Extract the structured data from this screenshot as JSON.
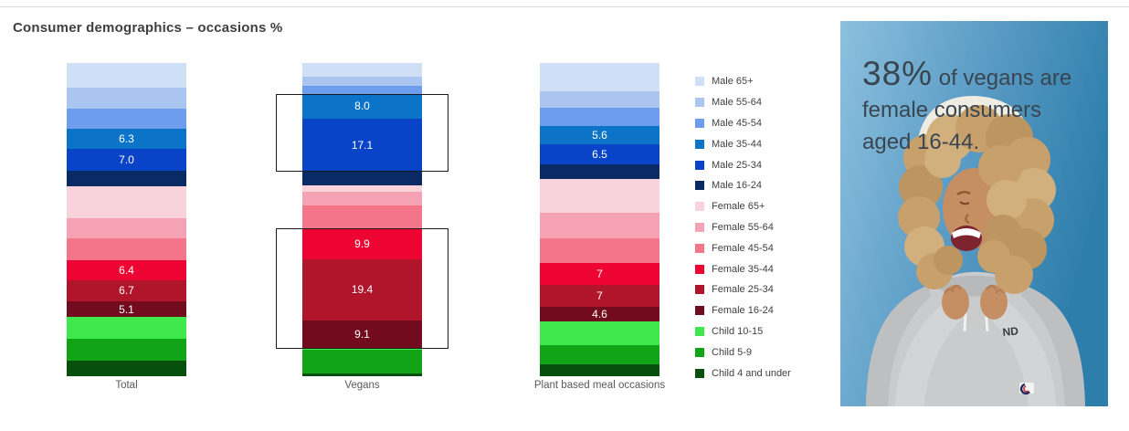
{
  "title": "Consumer demographics – occasions %",
  "chart_data": {
    "type": "bar",
    "stacked": true,
    "unit": "%",
    "grid": false,
    "legend_position": "right",
    "categories": [
      "Total",
      "Vegans",
      "Plant based meal occasions"
    ],
    "segments": [
      {
        "label": "Male 65+",
        "color": "#CEDFF6",
        "values": [
          7.9,
          4.5,
          9.0
        ],
        "labels": [
          null,
          null,
          null
        ]
      },
      {
        "label": "Male 55-64",
        "color": "#A9C5F0",
        "values": [
          6.7,
          2.9,
          5.3
        ],
        "labels": [
          null,
          null,
          null
        ]
      },
      {
        "label": "Male 45-54",
        "color": "#6D9EEE",
        "values": [
          6.5,
          2.4,
          5.9
        ],
        "labels": [
          null,
          null,
          null
        ]
      },
      {
        "label": "Male 35-44",
        "color": "#0C74C8",
        "values": [
          6.3,
          8.0,
          5.6
        ],
        "labels": [
          "6.3",
          "8.0",
          "5.6"
        ]
      },
      {
        "label": "Male 25-34",
        "color": "#0944C8",
        "values": [
          7.0,
          17.1,
          6.5
        ],
        "labels": [
          "7.0",
          "17.1",
          "6.5"
        ]
      },
      {
        "label": "Male 16-24",
        "color": "#0A2A66",
        "values": [
          4.9,
          4.3,
          4.7
        ],
        "labels": [
          null,
          null,
          null
        ]
      },
      {
        "label": "Female 65+",
        "color": "#F8D3DC",
        "values": [
          10.2,
          1.9,
          10.8
        ],
        "labels": [
          null,
          null,
          null
        ]
      },
      {
        "label": "Female 55-64",
        "color": "#F5A2B4",
        "values": [
          6.5,
          4.6,
          8.0
        ],
        "labels": [
          null,
          null,
          null
        ]
      },
      {
        "label": "Female 45-54",
        "color": "#F4758A",
        "values": [
          7.0,
          7.3,
          8.0
        ],
        "labels": [
          null,
          null,
          null
        ]
      },
      {
        "label": "Female 35-44",
        "color": "#EE0433",
        "values": [
          6.4,
          9.9,
          7.0
        ],
        "labels": [
          "6.4",
          "9.9",
          "7"
        ]
      },
      {
        "label": "Female 25-34",
        "color": "#B0152C",
        "values": [
          6.7,
          19.4,
          7.0
        ],
        "labels": [
          "6.7",
          "19.4",
          "7"
        ]
      },
      {
        "label": "Female 16-24",
        "color": "#730B1E",
        "values": [
          5.1,
          9.1,
          4.6
        ],
        "labels": [
          "5.1",
          "9.1",
          "4.6"
        ]
      },
      {
        "label": "Child 10-15",
        "color": "#3FE84D",
        "values": [
          6.9,
          0.5,
          7.5
        ],
        "labels": [
          null,
          null,
          null
        ]
      },
      {
        "label": "Child 5-9",
        "color": "#12A417",
        "values": [
          7.0,
          7.4,
          6.3
        ],
        "labels": [
          null,
          null,
          null
        ]
      },
      {
        "label": "Child 4 and under",
        "color": "#074F0C",
        "values": [
          4.9,
          0.9,
          3.6
        ],
        "labels": [
          null,
          null,
          null
        ]
      }
    ],
    "highlights": [
      {
        "category_index": 1,
        "segment_start": 3,
        "segment_end": 4
      },
      {
        "category_index": 1,
        "segment_start": 9,
        "segment_end": 11
      }
    ]
  },
  "photo": {
    "stat": "38%",
    "caption_line1": " of vegans are",
    "caption_line2": "female consumers",
    "caption_line3": "aged 16-44.",
    "subject": "laughing woman with curly hair, white beanie and grey hoodie on blue background",
    "bg_colors": [
      "#8CC0DE",
      "#2E7EAC"
    ]
  }
}
